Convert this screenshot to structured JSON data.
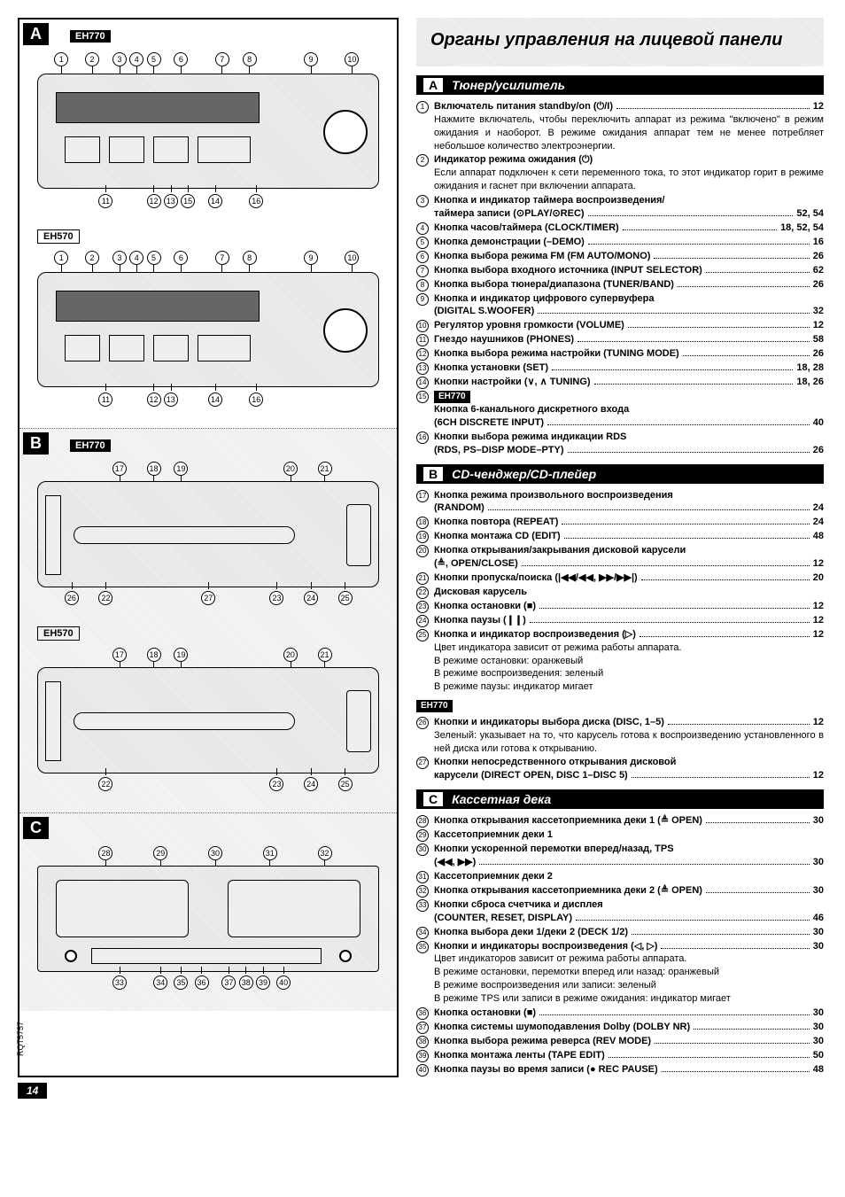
{
  "doc_code": "RQT5757",
  "page_number": "14",
  "main_title": "Органы управления на лицевой панели",
  "left": {
    "sections": [
      {
        "letter": "A",
        "panels": [
          {
            "model": "EH770",
            "style": "filled",
            "top_callouts": [
              1,
              2,
              3,
              4,
              5,
              6,
              7,
              8,
              9,
              10
            ],
            "bottom_callouts": [
              11,
              12,
              13,
              14,
              15,
              16
            ]
          },
          {
            "model": "EH570",
            "style": "outline",
            "top_callouts": [
              1,
              2,
              3,
              4,
              5,
              6,
              7,
              8,
              9,
              10
            ],
            "bottom_callouts": [
              11,
              12,
              13,
              14,
              16
            ]
          }
        ]
      },
      {
        "letter": "B",
        "panels": [
          {
            "model": "EH770",
            "style": "filled",
            "top_callouts": [
              17,
              18,
              19,
              20,
              21
            ],
            "bottom_callouts": [
              26,
              22,
              27,
              23,
              24,
              25
            ]
          },
          {
            "model": "EH570",
            "style": "outline",
            "top_callouts": [
              17,
              18,
              19,
              20,
              21
            ],
            "bottom_callouts": [
              22,
              23,
              24,
              25
            ]
          }
        ]
      },
      {
        "letter": "C",
        "panels": [
          {
            "model": "",
            "style": "",
            "top_callouts": [
              28,
              29,
              30,
              31,
              32
            ],
            "bottom_callouts": [
              33,
              34,
              35,
              36,
              37,
              38,
              39,
              40
            ]
          }
        ]
      }
    ]
  },
  "right": {
    "sections": [
      {
        "letter": "A",
        "title": "Тюнер/усилитель",
        "items": [
          {
            "n": 1,
            "label": "Включатель питания standby/on (⏻/I)",
            "page": "12",
            "note": "Нажмите включатель, чтобы переключить аппарат из режима \"включено\" в режим ожидания и наоборот. В режиме ожидания аппарат тем не менее потребляет небольшое количество электроэнергии."
          },
          {
            "n": 2,
            "label": "Индикатор режима ожидания (⏻)",
            "page": "",
            "note": "Если аппарат подключен к сети переменного тока, то этот индикатор горит в режиме ожидания и гаснет при включении аппарата."
          },
          {
            "n": 3,
            "label": "Кнопка и индикатор таймера воспроизведения/",
            "label2": "таймера записи (⊙PLAY/⊙REC)",
            "page": "52, 54"
          },
          {
            "n": 4,
            "label": "Кнопка часов/таймера (CLOCK/TIMER)",
            "page": "18, 52, 54"
          },
          {
            "n": 5,
            "label": "Кнопка демонстрации (–DEMO)",
            "page": "16"
          },
          {
            "n": 6,
            "label": "Кнопка выбора режима FM (FM AUTO/MONO)",
            "page": "26"
          },
          {
            "n": 7,
            "label": "Кнопка выбора входного источника (INPUT SELECTOR)",
            "page": "62"
          },
          {
            "n": 8,
            "label": "Кнопка выбора тюнера/диапазона (TUNER/BAND)",
            "page": "26"
          },
          {
            "n": 9,
            "label": "Кнопка и индикатор цифрового супервуфера",
            "label2": "(DIGITAL S.WOOFER)",
            "page": "32"
          },
          {
            "n": 10,
            "label": "Регулятор уровня громкости (VOLUME)",
            "page": "12"
          },
          {
            "n": 11,
            "label": "Гнездо наушников (PHONES)",
            "page": "58"
          },
          {
            "n": 12,
            "label": "Кнопка выбора режима настройки (TUNING MODE)",
            "page": "26"
          },
          {
            "n": 13,
            "label": "Кнопка установки (SET)",
            "page": "18, 28"
          },
          {
            "n": 14,
            "label": "Кнопки настройки (∨, ∧ TUNING)",
            "page": "18, 26"
          },
          {
            "n": 15,
            "badge": "EH770",
            "label": "Кнопка 6-канального дискретного входа",
            "label2": "(6CH DISCRETE INPUT)",
            "page": "40"
          },
          {
            "n": 16,
            "label": "Кнопки выбора режима индикации RDS",
            "label2": "(RDS, PS–DISP MODE–PTY)",
            "page": "26"
          }
        ]
      },
      {
        "letter": "B",
        "title": "CD-ченджер/CD-плейер",
        "items": [
          {
            "n": 17,
            "label": "Кнопка режима произвольного воспроизведения",
            "label2": "(RANDOM)",
            "page": "24"
          },
          {
            "n": 18,
            "label": "Кнопка повтора (REPEAT)",
            "page": "24"
          },
          {
            "n": 19,
            "label": "Кнопка монтажа CD (EDIT)",
            "page": "48"
          },
          {
            "n": 20,
            "label": "Кнопка открывания/закрывания дисковой карусели",
            "label2": "(≜, OPEN/CLOSE)",
            "page": "12"
          },
          {
            "n": 21,
            "label": "Кнопки пропуска/поиска (|◀◀/◀◀, ▶▶/▶▶|)",
            "page": "20"
          },
          {
            "n": 22,
            "label": "Дисковая карусель",
            "page": ""
          },
          {
            "n": 23,
            "label": "Кнопка остановки (■)",
            "page": "12"
          },
          {
            "n": 24,
            "label": "Кнопка паузы (❙❙)",
            "page": "12"
          },
          {
            "n": 25,
            "label": "Кнопка и индикатор воспроизведения (▷)",
            "page": "12",
            "note": "Цвет индикатора зависит от режима работы аппарата.\nВ режиме остановки: оранжевый\nВ режиме воспроизведения: зеленый\nВ режиме паузы: индикатор мигает"
          }
        ],
        "sub": {
          "badge": "EH770",
          "items": [
            {
              "n": 26,
              "label": "Кнопки и индикаторы выбора диска (DISC, 1–5)",
              "page": "12",
              "note": "Зеленый: указывает на то, что карусель готова к воспроизведению установленного в ней диска или готова к открыванию."
            },
            {
              "n": 27,
              "label": "Кнопки непосредственного открывания дисковой",
              "label2": "карусели (DIRECT OPEN, DISC 1–DISC 5)",
              "page": "12"
            }
          ]
        }
      },
      {
        "letter": "C",
        "title": "Кассетная дека",
        "items": [
          {
            "n": 28,
            "label": "Кнопка открывания кассетоприемника деки 1 (≜ OPEN)",
            "page": "30"
          },
          {
            "n": 29,
            "label": "Кассетоприемник деки 1",
            "page": ""
          },
          {
            "n": 30,
            "label": "Кнопки ускоренной перемотки вперед/назад, TPS",
            "label2": "(◀◀, ▶▶)",
            "page": "30"
          },
          {
            "n": 31,
            "label": "Кассетоприемник деки 2",
            "page": ""
          },
          {
            "n": 32,
            "label": "Кнопка открывания кассетоприемника деки 2 (≜ OPEN)",
            "page": "30"
          },
          {
            "n": 33,
            "label": "Кнопки сброса счетчика и дисплея",
            "label2": "(COUNTER, RESET, DISPLAY)",
            "page": "46"
          },
          {
            "n": 34,
            "label": "Кнопка выбора деки 1/деки 2 (DECK 1/2)",
            "page": "30"
          },
          {
            "n": 35,
            "label": "Кнопки и индикаторы воспроизведения (◁, ▷)",
            "page": "30",
            "note": "Цвет индикаторов зависит от режима работы аппарата.\nВ режиме остановки, перемотки вперед или назад: оранжевый\nВ режиме воспроизведения или записи: зеленый\nВ режиме TPS или записи в режиме ожидания: индикатор мигает"
          },
          {
            "n": 36,
            "label": "Кнопка остановки (■)",
            "page": "30"
          },
          {
            "n": 37,
            "label": "Кнопка системы шумоподавления Dolby (DOLBY NR)",
            "page": "30"
          },
          {
            "n": 38,
            "label": "Кнопка выбора режима реверса (REV MODE)",
            "page": "30"
          },
          {
            "n": 39,
            "label": "Кнопка монтажа ленты (TAPE EDIT)",
            "page": "50"
          },
          {
            "n": 40,
            "label": "Кнопка паузы во время записи (● REC PAUSE)",
            "page": "48"
          }
        ]
      }
    ]
  }
}
